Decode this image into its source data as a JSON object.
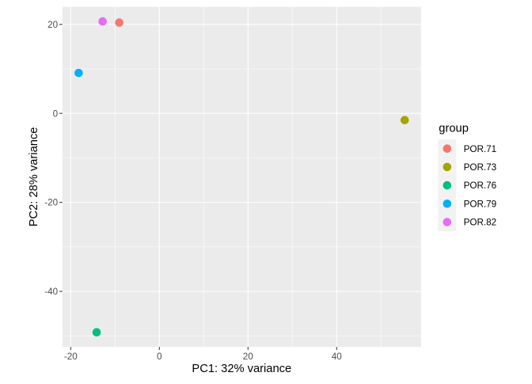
{
  "chart_data": {
    "type": "scatter",
    "title": "",
    "xlabel": "PC1: 32% variance",
    "ylabel": "PC2: 28% variance",
    "xlim": [
      -21.88,
      59.03
    ],
    "ylim": [
      -52.49,
      23.95
    ],
    "x_major_ticks": [
      -20,
      0,
      20,
      40
    ],
    "x_minor_ticks": [
      -10,
      10,
      30,
      50
    ],
    "y_major_ticks": [
      20,
      0,
      -20,
      -40
    ],
    "y_minor_ticks": [
      10,
      -10,
      -30,
      -50
    ],
    "grid": "major+minor",
    "legend_position": "right",
    "legend_title": "group",
    "series": [
      {
        "name": "POR.71",
        "color": "#F8766D",
        "points": [
          {
            "x": -9.05,
            "y": 20.41
          }
        ]
      },
      {
        "name": "POR.73",
        "color": "#A3A500",
        "points": [
          {
            "x": 55.35,
            "y": -1.51
          }
        ]
      },
      {
        "name": "POR.76",
        "color": "#00BF7D",
        "points": [
          {
            "x": -14.15,
            "y": -49.2
          }
        ]
      },
      {
        "name": "POR.79",
        "color": "#00B0F6",
        "points": [
          {
            "x": -18.2,
            "y": 9.09
          }
        ]
      },
      {
        "name": "POR.82",
        "color": "#E76BF3",
        "points": [
          {
            "x": -12.8,
            "y": 20.66
          }
        ]
      }
    ],
    "colors": {
      "page_bg": "#FFFFFF",
      "panel_bg": "#EBEBEB",
      "grid_major": "#FFFFFF",
      "grid_minor": "#FFFFFF",
      "tick_mark": "#333333",
      "tick_label": "#4D4D4D",
      "axis_title": "#000000",
      "legend_title": "#000000",
      "legend_text": "#000000",
      "legend_key_bg": "#F2F2F2"
    }
  }
}
